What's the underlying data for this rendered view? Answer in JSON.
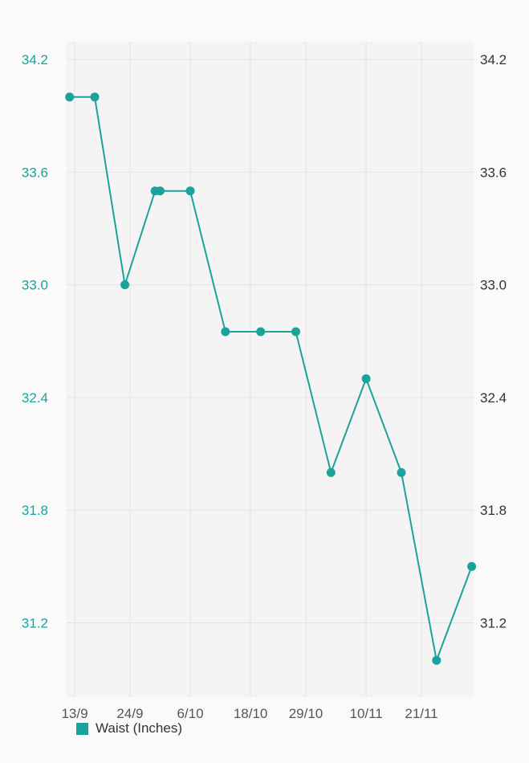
{
  "colors": {
    "series": "#1aa39a",
    "left_axis_text": "#1aa39a",
    "right_axis_text": "#333333",
    "x_axis_text": "#555555",
    "grid": "#e3e3e3",
    "plot_bg": "#f4f4f4"
  },
  "chart_data": {
    "type": "line",
    "title": "",
    "xlabel": "",
    "ylabel": "",
    "x_axis": {
      "type": "date",
      "tick_labels": [
        "13/9",
        "24/9",
        "6/10",
        "18/10",
        "29/10",
        "10/11",
        "21/11"
      ]
    },
    "y_axis_left": {
      "ticks": [
        "31.2",
        "31.8",
        "32.4",
        "33.0",
        "33.6",
        "34.2"
      ],
      "ylim": [
        30.8,
        34.2
      ]
    },
    "y_axis_right": {
      "ticks": [
        "31.2",
        "31.8",
        "32.4",
        "33.0",
        "33.6",
        "34.2"
      ],
      "ylim": [
        30.8,
        34.2
      ]
    },
    "grid": true,
    "legend": {
      "placement": "bottom-left",
      "entries": [
        "Waist (Inches)"
      ]
    },
    "series": [
      {
        "name": "Waist (Inches)",
        "points": [
          {
            "x": "12/9",
            "y": 34.0
          },
          {
            "x": "17/9",
            "y": 34.0
          },
          {
            "x": "23/9",
            "y": 33.0
          },
          {
            "x": "29/9",
            "y": 33.5
          },
          {
            "x": "30/9",
            "y": 33.5
          },
          {
            "x": "6/10",
            "y": 33.5
          },
          {
            "x": "13/10",
            "y": 32.75
          },
          {
            "x": "20/10",
            "y": 32.75
          },
          {
            "x": "27/10",
            "y": 32.75
          },
          {
            "x": "3/11",
            "y": 32.0
          },
          {
            "x": "10/11",
            "y": 32.5
          },
          {
            "x": "17/11",
            "y": 32.0
          },
          {
            "x": "24/11",
            "y": 31.0
          },
          {
            "x": "1/12",
            "y": 31.5
          }
        ]
      }
    ]
  }
}
